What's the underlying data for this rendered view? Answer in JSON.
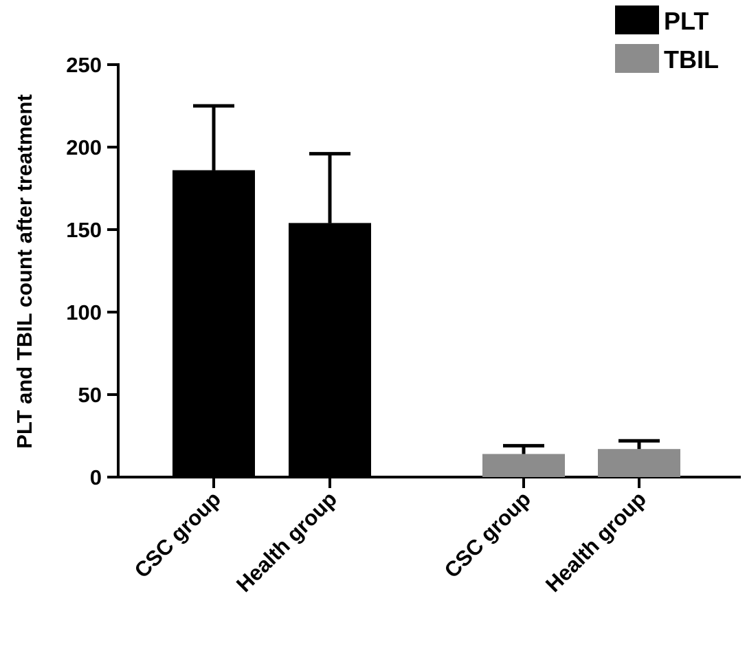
{
  "chart_data": {
    "type": "bar",
    "title": "",
    "xlabel": "",
    "ylabel": "PLT and TBIL count after treatment",
    "ylim": [
      0,
      250
    ],
    "yticks": [
      0,
      50,
      100,
      150,
      200,
      250
    ],
    "grid": false,
    "legend_position": "top-right",
    "series": [
      {
        "name": "PLT",
        "color": "#000000",
        "categories": [
          "CSC group",
          "Health group"
        ],
        "values": [
          186,
          154
        ],
        "errors": [
          39,
          42
        ]
      },
      {
        "name": "TBIL",
        "color": "#8c8c8c",
        "categories": [
          "CSC group",
          "Health group"
        ],
        "values": [
          14,
          17
        ],
        "errors": [
          5,
          5
        ]
      }
    ]
  }
}
